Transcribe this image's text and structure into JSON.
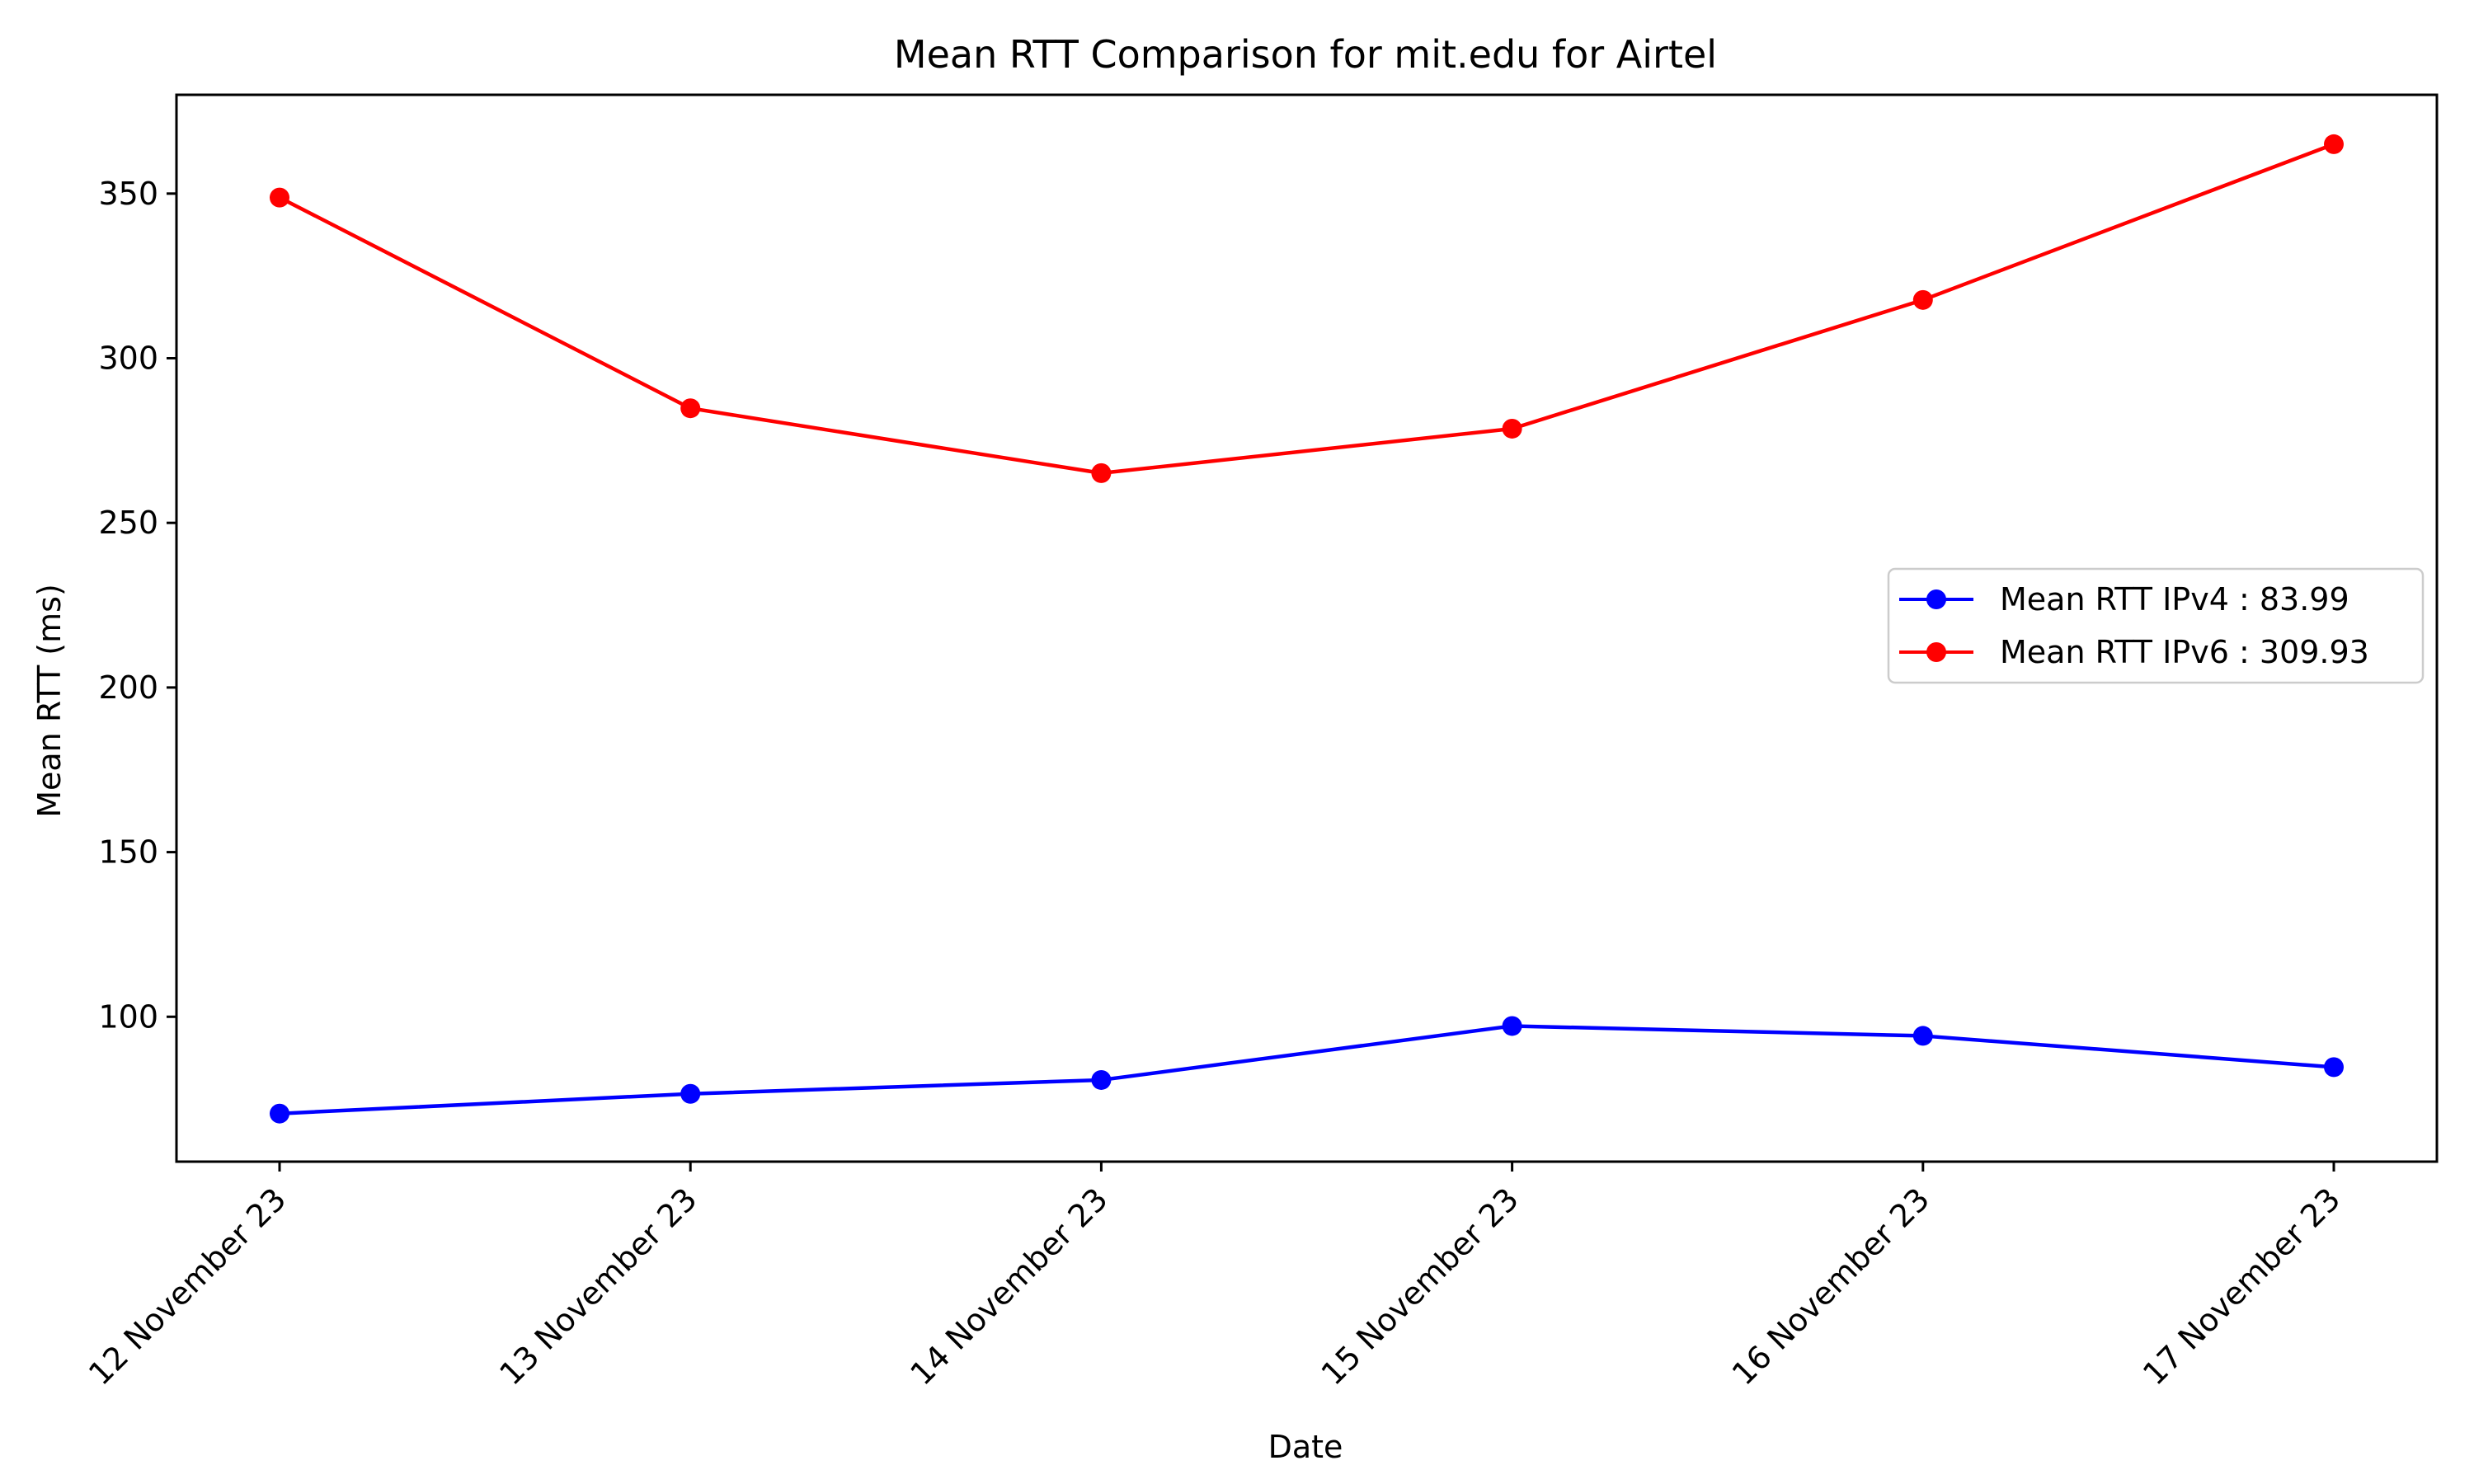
{
  "chart_data": {
    "type": "line",
    "title": "Mean RTT Comparison for mit.edu for Airtel",
    "xlabel": "Date",
    "ylabel": "Mean RTT (ms)",
    "categories": [
      "12 November 23",
      "13 November 23",
      "14 November 23",
      "15 November 23",
      "16 November 23",
      "17 November 23"
    ],
    "ylim": [
      56,
      380
    ],
    "yticks": [
      100,
      150,
      200,
      250,
      300,
      350
    ],
    "grid": false,
    "legend_position": "center-right",
    "series": [
      {
        "name": "Mean RTT IPv4 : 83.99",
        "color": "#0000ff",
        "values": [
          70.6,
          76.6,
          80.8,
          97.2,
          94.2,
          84.7
        ]
      },
      {
        "name": "Mean RTT IPv6 : 309.93",
        "color": "#ff0000",
        "values": [
          348.8,
          284.8,
          265.1,
          278.6,
          317.7,
          365.0
        ]
      }
    ]
  }
}
